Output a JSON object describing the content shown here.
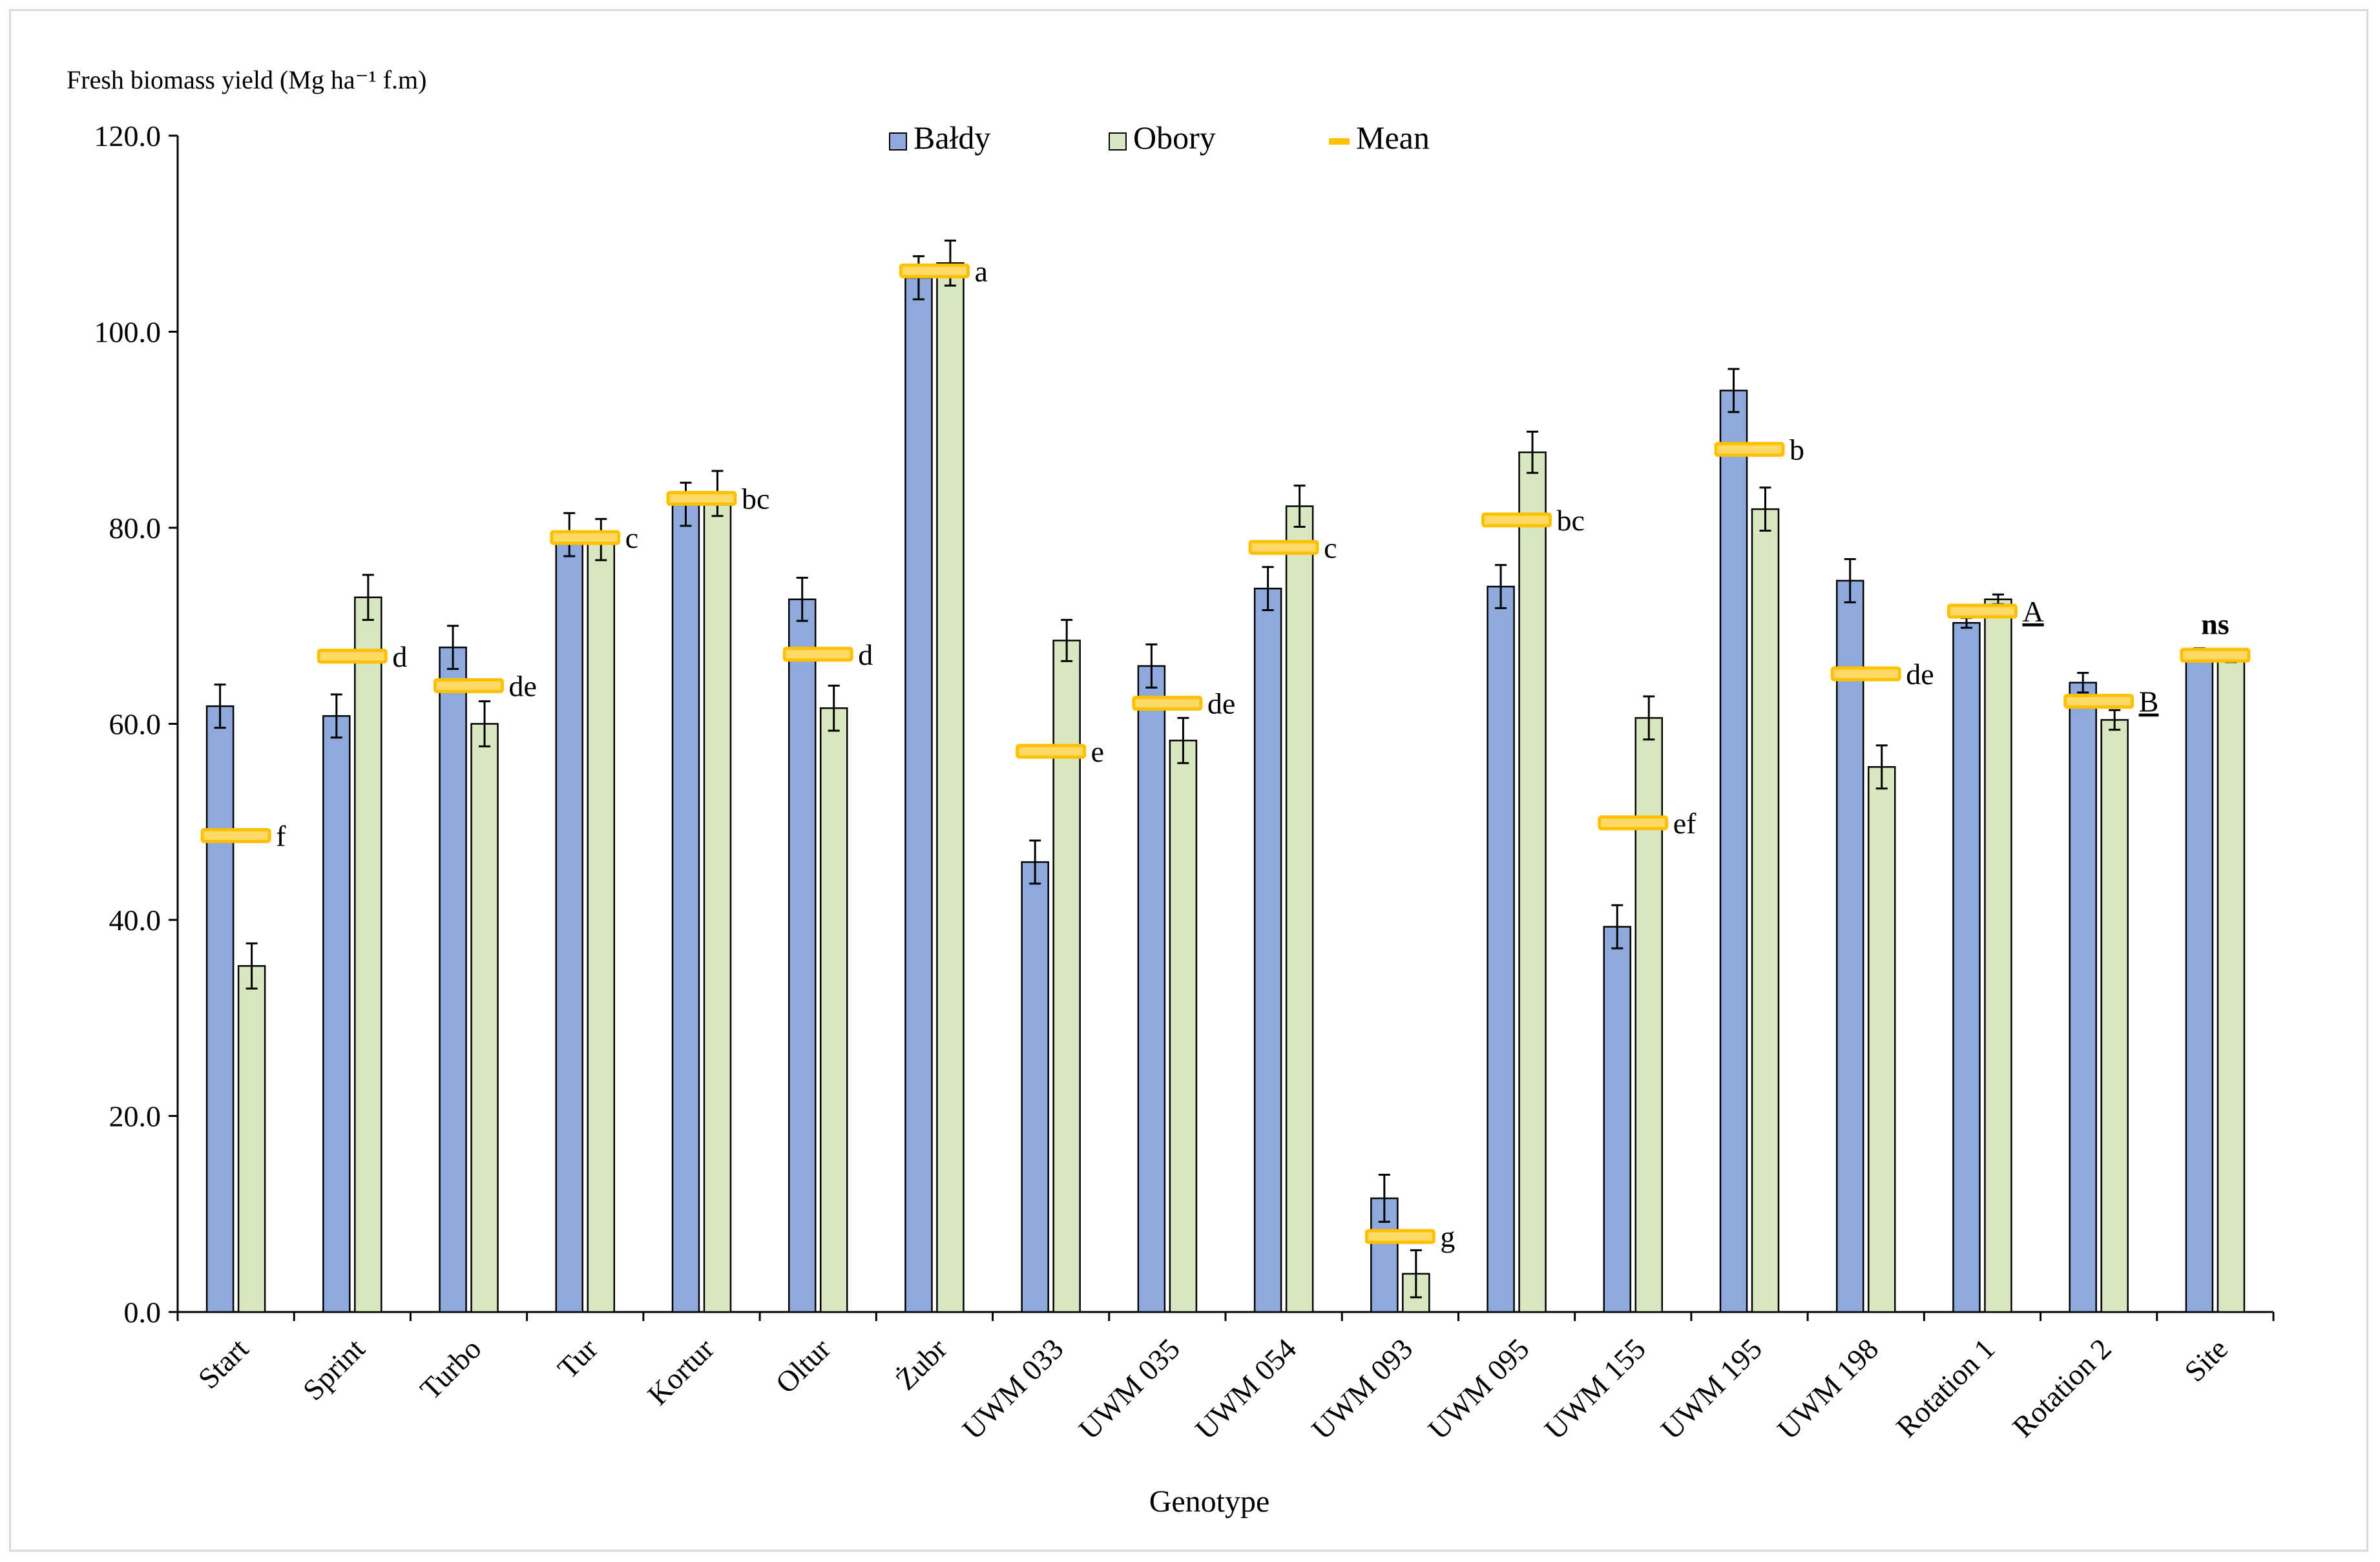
{
  "chart_data": {
    "type": "bar",
    "ylabel": "Fresh biomass yield (Mg ha⁻¹ f.m)",
    "xlabel": "Genotype",
    "ylim": [
      0,
      120
    ],
    "yticks": [
      0,
      20,
      40,
      60,
      80,
      100,
      120
    ],
    "ytick_labels": [
      "0.0",
      "20.0",
      "40.0",
      "60.0",
      "80.0",
      "100.0",
      "120.0"
    ],
    "legend_position": "top-center",
    "categories": [
      "Start",
      "Sprint",
      "Turbo",
      "Tur",
      "Kortur",
      "Oltur",
      "Żubr",
      "UWM 033",
      "UWM 035",
      "UWM 054",
      "UWM 093",
      "UWM 095",
      "UWM 155",
      "UWM 195",
      "UWM 198",
      "Rotation 1",
      "Rotation 2",
      "Site"
    ],
    "series": [
      {
        "name": "Bałdy",
        "color": "#8EA9DB",
        "values": [
          61.8,
          60.8,
          67.8,
          79.3,
          82.4,
          72.7,
          105.5,
          45.9,
          65.9,
          73.8,
          11.6,
          74.0,
          39.3,
          94.0,
          74.6,
          70.3,
          64.2,
          67.2
        ],
        "errors": [
          2.2,
          2.2,
          2.2,
          2.2,
          2.2,
          2.2,
          2.2,
          2.2,
          2.2,
          2.2,
          2.4,
          2.2,
          2.2,
          2.2,
          2.2,
          0.5,
          1.0,
          0.5
        ]
      },
      {
        "name": "Obory",
        "color": "#D9E7C1",
        "values": [
          35.3,
          72.9,
          60.0,
          78.8,
          83.5,
          61.6,
          107.0,
          68.5,
          58.3,
          82.2,
          3.9,
          87.7,
          60.6,
          81.9,
          55.6,
          72.7,
          60.4,
          66.8
        ],
        "errors": [
          2.3,
          2.3,
          2.3,
          2.1,
          2.3,
          2.3,
          2.3,
          2.1,
          2.3,
          2.1,
          2.4,
          2.1,
          2.2,
          2.2,
          2.2,
          0.5,
          1.0,
          0.5
        ]
      },
      {
        "name": "Mean",
        "color": "#FFC000",
        "values": [
          48.6,
          66.9,
          63.9,
          79.0,
          83.0,
          67.1,
          106.2,
          57.2,
          62.1,
          78.0,
          7.7,
          80.8,
          49.9,
          88.0,
          65.1,
          71.5,
          62.3,
          67.0
        ]
      }
    ],
    "annotations": [
      "f",
      "d",
      "de",
      "c",
      "bc",
      "d",
      "a",
      "e",
      "de",
      "c",
      "g",
      "bc",
      "ef",
      "b",
      "de",
      "A",
      "B",
      "ns"
    ]
  }
}
